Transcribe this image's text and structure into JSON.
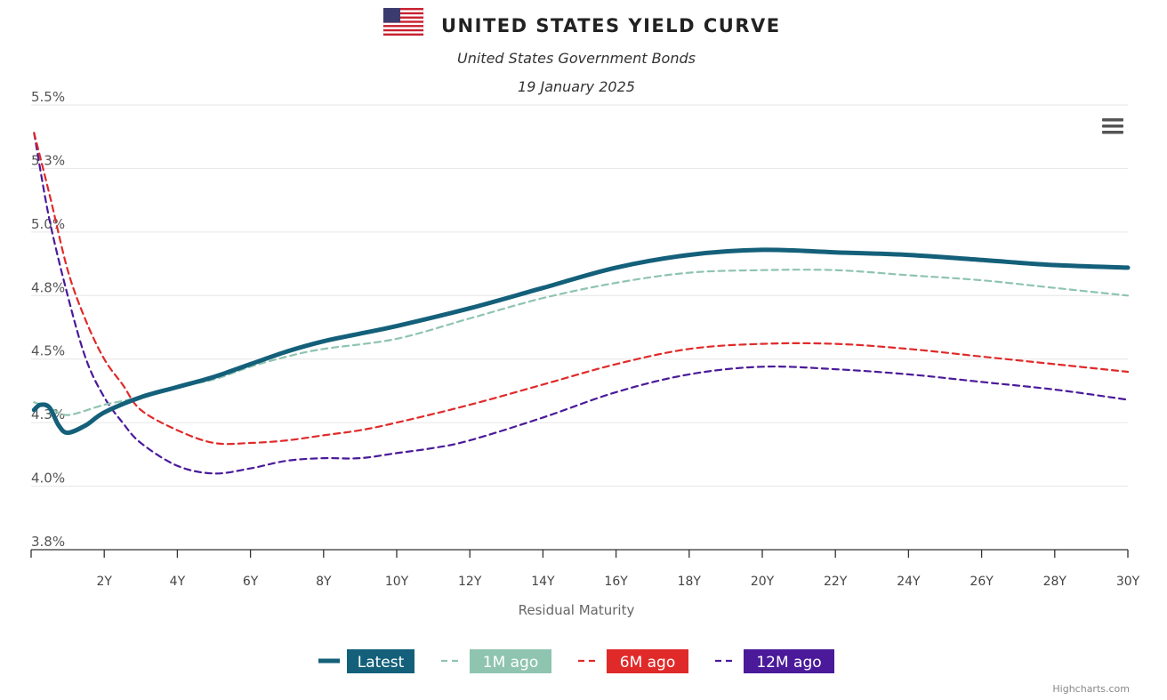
{
  "header": {
    "title": "UNITED STATES YIELD CURVE",
    "subtitle": "United States Government Bonds",
    "date": "19 January 2025",
    "flag_icon": "us-flag-icon"
  },
  "menu_icon": "hamburger-menu-icon",
  "credits": "Highcharts.com",
  "chart_data": {
    "type": "line",
    "title": "UNITED STATES YIELD CURVE",
    "subtitle": "United States Government Bonds",
    "date": "19 January 2025",
    "xlabel": "Residual Maturity",
    "ylabel": "",
    "xlim": [
      0,
      30
    ],
    "ylim": [
      3.75,
      5.5
    ],
    "x_ticks": [
      {
        "value": 2,
        "label": "2Y"
      },
      {
        "value": 4,
        "label": "4Y"
      },
      {
        "value": 6,
        "label": "6Y"
      },
      {
        "value": 8,
        "label": "8Y"
      },
      {
        "value": 10,
        "label": "10Y"
      },
      {
        "value": 12,
        "label": "12Y"
      },
      {
        "value": 14,
        "label": "14Y"
      },
      {
        "value": 16,
        "label": "16Y"
      },
      {
        "value": 18,
        "label": "18Y"
      },
      {
        "value": 20,
        "label": "20Y"
      },
      {
        "value": 22,
        "label": "22Y"
      },
      {
        "value": 24,
        "label": "24Y"
      },
      {
        "value": 26,
        "label": "26Y"
      },
      {
        "value": 28,
        "label": "28Y"
      },
      {
        "value": 30,
        "label": "30Y"
      }
    ],
    "y_ticks": [
      {
        "value": 3.75,
        "label": "3.8%"
      },
      {
        "value": 4.0,
        "label": "4.0%"
      },
      {
        "value": 4.25,
        "label": "4.3%"
      },
      {
        "value": 4.5,
        "label": "4.5%"
      },
      {
        "value": 4.75,
        "label": "4.8%"
      },
      {
        "value": 5.0,
        "label": "5.0%"
      },
      {
        "value": 5.25,
        "label": "5.3%"
      },
      {
        "value": 5.5,
        "label": "5.5%"
      }
    ],
    "grid": true,
    "legend_position": "bottom",
    "series": [
      {
        "name": "Latest",
        "color": "#14607a",
        "dash": "solid",
        "points": [
          [
            0.08,
            4.3
          ],
          [
            0.25,
            4.32
          ],
          [
            0.5,
            4.31
          ],
          [
            0.75,
            4.24
          ],
          [
            1,
            4.21
          ],
          [
            1.5,
            4.24
          ],
          [
            2,
            4.29
          ],
          [
            3,
            4.35
          ],
          [
            4,
            4.39
          ],
          [
            5,
            4.43
          ],
          [
            6,
            4.48
          ],
          [
            7,
            4.53
          ],
          [
            8,
            4.57
          ],
          [
            9,
            4.6
          ],
          [
            10,
            4.63
          ],
          [
            12,
            4.7
          ],
          [
            14,
            4.78
          ],
          [
            16,
            4.86
          ],
          [
            18,
            4.91
          ],
          [
            20,
            4.93
          ],
          [
            22,
            4.92
          ],
          [
            24,
            4.91
          ],
          [
            26,
            4.89
          ],
          [
            28,
            4.87
          ],
          [
            30,
            4.86
          ]
        ]
      },
      {
        "name": "1M ago",
        "color": "#8fc4b0",
        "dash": "dashed",
        "points": [
          [
            0.08,
            4.33
          ],
          [
            0.5,
            4.31
          ],
          [
            1,
            4.28
          ],
          [
            2,
            4.32
          ],
          [
            3,
            4.35
          ],
          [
            4,
            4.39
          ],
          [
            5,
            4.42
          ],
          [
            6,
            4.47
          ],
          [
            7,
            4.51
          ],
          [
            8,
            4.54
          ],
          [
            10,
            4.58
          ],
          [
            12,
            4.66
          ],
          [
            14,
            4.74
          ],
          [
            16,
            4.8
          ],
          [
            18,
            4.84
          ],
          [
            20,
            4.85
          ],
          [
            22,
            4.85
          ],
          [
            24,
            4.83
          ],
          [
            26,
            4.81
          ],
          [
            28,
            4.78
          ],
          [
            30,
            4.75
          ]
        ]
      },
      {
        "name": "6M ago",
        "color": "#e02a2a",
        "dash": "dashed",
        "points": [
          [
            0.08,
            5.39
          ],
          [
            0.5,
            5.15
          ],
          [
            1,
            4.85
          ],
          [
            1.5,
            4.65
          ],
          [
            2,
            4.5
          ],
          [
            2.5,
            4.4
          ],
          [
            3,
            4.3
          ],
          [
            4,
            4.22
          ],
          [
            5,
            4.17
          ],
          [
            6,
            4.17
          ],
          [
            7,
            4.18
          ],
          [
            8,
            4.2
          ],
          [
            9,
            4.22
          ],
          [
            10,
            4.25
          ],
          [
            12,
            4.32
          ],
          [
            14,
            4.4
          ],
          [
            16,
            4.48
          ],
          [
            18,
            4.54
          ],
          [
            20,
            4.56
          ],
          [
            22,
            4.56
          ],
          [
            24,
            4.54
          ],
          [
            26,
            4.51
          ],
          [
            28,
            4.48
          ],
          [
            30,
            4.45
          ]
        ]
      },
      {
        "name": "12M ago",
        "color": "#4a1a9a",
        "dash": "dashed",
        "points": [
          [
            0.08,
            5.39
          ],
          [
            0.5,
            5.05
          ],
          [
            1,
            4.75
          ],
          [
            1.5,
            4.5
          ],
          [
            2,
            4.35
          ],
          [
            2.5,
            4.25
          ],
          [
            3,
            4.17
          ],
          [
            4,
            4.08
          ],
          [
            5,
            4.05
          ],
          [
            6,
            4.07
          ],
          [
            7,
            4.1
          ],
          [
            8,
            4.11
          ],
          [
            9,
            4.11
          ],
          [
            10,
            4.13
          ],
          [
            11,
            4.15
          ],
          [
            12,
            4.18
          ],
          [
            14,
            4.27
          ],
          [
            16,
            4.37
          ],
          [
            18,
            4.44
          ],
          [
            20,
            4.47
          ],
          [
            22,
            4.46
          ],
          [
            24,
            4.44
          ],
          [
            26,
            4.41
          ],
          [
            28,
            4.38
          ],
          [
            30,
            4.34
          ]
        ]
      }
    ]
  }
}
